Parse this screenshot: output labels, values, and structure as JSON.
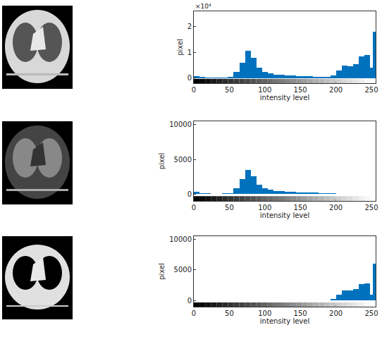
{
  "chart_data": [
    {
      "type": "histogram",
      "color": "#0072bd",
      "grid": false,
      "x_label": "intensity level",
      "y_label": "pixel",
      "annotations": [
        "×10⁴"
      ],
      "bins": [
        0,
        8,
        16,
        24,
        32,
        40,
        48,
        56,
        64,
        72,
        80,
        88,
        96,
        104,
        112,
        120,
        128,
        136,
        144,
        152,
        160,
        168,
        176,
        184,
        192,
        200,
        208,
        216,
        224,
        232,
        240,
        248,
        252,
        256
      ],
      "values": [
        0.08,
        0.04,
        0.02,
        0.02,
        0.02,
        0.03,
        0.05,
        0.25,
        0.6,
        1.05,
        0.8,
        0.4,
        0.25,
        0.18,
        0.14,
        0.12,
        0.1,
        0.09,
        0.08,
        0.07,
        0.07,
        0.06,
        0.06,
        0.05,
        0.1,
        0.3,
        0.5,
        0.45,
        0.55,
        0.85,
        0.9,
        0.4,
        1.8
      ],
      "xlim": [
        0,
        256
      ],
      "xticks": [
        0,
        50,
        100,
        150,
        200,
        250
      ],
      "ylim": [
        -0.2,
        2.6
      ],
      "yticks": [
        0,
        1,
        2
      ]
    },
    {
      "type": "histogram",
      "color": "#0072bd",
      "grid": false,
      "x_label": "intensity level",
      "y_label": "pixel",
      "bins": [
        0,
        8,
        16,
        24,
        32,
        40,
        48,
        56,
        64,
        72,
        80,
        88,
        96,
        104,
        112,
        120,
        128,
        136,
        144,
        152,
        160,
        168,
        176,
        184,
        192,
        200,
        208,
        216,
        224,
        232,
        240,
        248,
        252,
        256
      ],
      "values": [
        300,
        150,
        80,
        60,
        60,
        80,
        150,
        800,
        2200,
        3500,
        2600,
        1300,
        800,
        600,
        450,
        380,
        320,
        280,
        250,
        220,
        200,
        180,
        150,
        100,
        70,
        50,
        40,
        30,
        20,
        10,
        5,
        0,
        0
      ],
      "xlim": [
        0,
        256
      ],
      "xticks": [
        0,
        50,
        100,
        150,
        200,
        250
      ],
      "ylim": [
        -1000,
        10500
      ],
      "yticks": [
        0,
        5000,
        10000
      ]
    },
    {
      "type": "histogram",
      "color": "#0072bd",
      "grid": false,
      "x_label": "intensity level",
      "y_label": "pixel",
      "bins": [
        0,
        8,
        16,
        24,
        32,
        40,
        48,
        56,
        64,
        72,
        80,
        88,
        96,
        104,
        112,
        120,
        128,
        136,
        144,
        152,
        160,
        168,
        176,
        184,
        192,
        200,
        208,
        216,
        224,
        232,
        240,
        248,
        252,
        256
      ],
      "values": [
        0,
        0,
        0,
        0,
        0,
        0,
        0,
        0,
        0,
        0,
        0,
        0,
        0,
        0,
        0,
        0,
        0,
        0,
        0,
        0,
        0,
        0,
        0,
        0,
        300,
        900,
        1700,
        1600,
        1900,
        2700,
        2800,
        1000,
        6000
      ],
      "xlim": [
        0,
        256
      ],
      "xticks": [
        0,
        50,
        100,
        150,
        200,
        250
      ],
      "ylim": [
        -1000,
        10500
      ],
      "yticks": [
        0,
        5000,
        10000
      ]
    }
  ]
}
